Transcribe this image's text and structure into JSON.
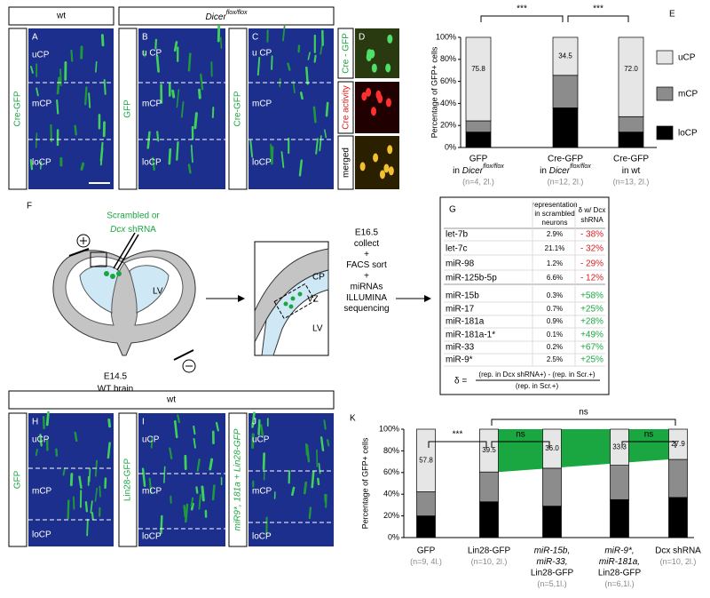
{
  "panel_headers": {
    "top_wt": "wt",
    "dicer_gene": "Dicer",
    "dicer_sup": "flox/flox",
    "bottom_wt": "wt"
  },
  "micrographs": [
    {
      "letter": "A",
      "side_label": "Cre-GFP",
      "layers": [
        "uCP",
        "mCP",
        "loCP"
      ]
    },
    {
      "letter": "B",
      "side_label": "GFP",
      "layers": [
        "u CP",
        "mCP",
        "loCP"
      ]
    },
    {
      "letter": "C",
      "side_label": "Cre-GFP",
      "layers": [
        "u CP",
        "mCP",
        "loCP"
      ]
    },
    {
      "letter": "H",
      "side_label": "GFP",
      "layers": [
        "uCP",
        "mCP",
        "loCP"
      ]
    },
    {
      "letter": "I",
      "side_label": "Lin28-GFP",
      "layers": [
        "uCP",
        "mCP",
        "loCP"
      ]
    },
    {
      "letter": "J",
      "side_label": "miR9*, 181a + Lin28-GFP",
      "layers": [
        "uCP",
        "mCP",
        "loCP"
      ]
    }
  ],
  "panel_d": {
    "letter": "D",
    "labels": [
      "Cre - GFP",
      "Cre activity",
      "merged"
    ]
  },
  "panel_f": {
    "letter": "F",
    "injection_line1": "Scrambled or",
    "injection_gene": "Dcx",
    "injection_rest": " shRNA",
    "brain_lv": "LV",
    "brain_age": "E14.5",
    "brain_label": "WT brain",
    "inset": [
      "CP",
      "VZ",
      "LV"
    ],
    "steps": [
      "E16.5",
      "collect",
      "+",
      "FACS sort",
      "+",
      "miRNAs",
      "ILLUMINA",
      "sequencing"
    ]
  },
  "table_g": {
    "letter": "G",
    "header_rep": [
      "representation",
      "in scrambled",
      "neurons"
    ],
    "header_delta": [
      "δ w/ Dcx",
      "shRNA"
    ],
    "rows": [
      [
        "let-7b",
        "2.9%",
        "- 38%"
      ],
      [
        "let-7c",
        "21.1%",
        "- 32%"
      ],
      [
        "miR-98",
        "1.2%",
        "- 29%"
      ],
      [
        "miR-125b-5p",
        "6.6%",
        "- 12%"
      ],
      [
        "miR-15b",
        "0.3%",
        "+58%"
      ],
      [
        "miR-17",
        "0.7%",
        "+25%"
      ],
      [
        "miR-181a",
        "0.9%",
        "+28%"
      ],
      [
        "miR-181a-1*",
        "0.1%",
        "+49%"
      ],
      [
        "miR-33",
        "0.2%",
        "+67%"
      ],
      [
        "miR-9*",
        "2.5%",
        "+25%"
      ]
    ],
    "formula_lhs": "δ =",
    "formula_numerator": "(rep. in Dcx shRNA+) - (rep. in Scr.+)",
    "formula_denominator": "(rep. in Scr.+)"
  },
  "chart_data": [
    {
      "type": "bar",
      "stacked": true,
      "panel_letter": "E",
      "y_label": "Percentage of GFP+ cells",
      "categories": [
        "GFP",
        "Cre-GFP",
        "Cre-GFP"
      ],
      "sublabel_parts": [
        [
          "in ",
          "Dicer",
          "flox/flox"
        ],
        [
          "in ",
          "Dicer",
          "flox/flox"
        ],
        [
          "in wt"
        ]
      ],
      "n_labels": [
        "(n=4, 2l.)",
        "(n=12, 2l.)",
        "(n=13, 2l.)"
      ],
      "series": [
        {
          "name": "loCP",
          "color": "#000000",
          "values": [
            14,
            36,
            14
          ]
        },
        {
          "name": "mCP",
          "color": "#8c8c8c",
          "values": [
            10.2,
            29.5,
            14
          ]
        },
        {
          "name": "uCP",
          "color": "#e6e6e6",
          "values": [
            75.8,
            34.5,
            72.0
          ],
          "value_labels": [
            "75.8",
            "34.5",
            "72.0"
          ]
        }
      ],
      "ylim": [
        0,
        100
      ],
      "yticks": [
        {
          "value": 0,
          "label": "0%"
        },
        {
          "value": 20,
          "label": "20%"
        },
        {
          "value": 40,
          "label": "40%"
        },
        {
          "value": 60,
          "label": "60%"
        },
        {
          "value": 80,
          "label": "80%"
        },
        {
          "value": 100,
          "label": "100%"
        }
      ],
      "legend": true,
      "significance": [
        "***",
        "***"
      ]
    },
    {
      "type": "bar",
      "stacked": true,
      "panel_letter": "K",
      "y_label": "Percentage of GFP+ cells",
      "categories": [
        [
          "GFP"
        ],
        [
          "Lin28-GFP"
        ],
        [
          "miR-15b,",
          "miR-33,",
          "Lin28-GFP"
        ],
        [
          "miR-9*,",
          "miR-181a,",
          "Lin28-GFP"
        ],
        [
          "Dcx shRNA"
        ]
      ],
      "n_labels": [
        "(n=9, 4l.)",
        "(n=10, 2l.)",
        "(n=5,1l.)",
        "(n=6,1l.)",
        "(n=10, 2l.)"
      ],
      "series": [
        {
          "name": "loCP",
          "color": "#000000",
          "values": [
            20,
            33,
            29,
            35,
            37
          ]
        },
        {
          "name": "mCP",
          "color": "#8c8c8c",
          "values": [
            22.2,
            27.5,
            35,
            31.7,
            35.1
          ]
        },
        {
          "name": "uCP",
          "color": "#e6e6e6",
          "values": [
            57.8,
            39.5,
            36.0,
            33.3,
            27.9
          ],
          "value_labels": [
            "57.8",
            "39.5",
            "36.0",
            "33.3",
            "27.9"
          ]
        }
      ],
      "ylim": [
        0,
        100
      ],
      "yticks": [
        {
          "value": 0,
          "label": "0%"
        },
        {
          "value": 20,
          "label": "20%"
        },
        {
          "value": 40,
          "label": "40%"
        },
        {
          "value": 60,
          "label": "60%"
        },
        {
          "value": 80,
          "label": "80%"
        },
        {
          "value": 100,
          "label": "100%"
        }
      ],
      "legend": false,
      "significance": [
        "***",
        "ns",
        "ns",
        "ns"
      ]
    }
  ]
}
